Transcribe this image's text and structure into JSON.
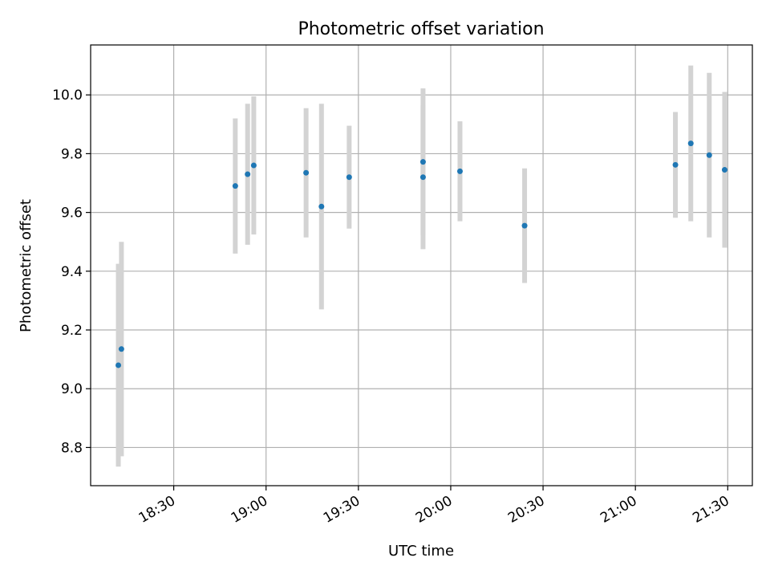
{
  "chart_data": {
    "type": "scatter",
    "title": "Photometric offset variation",
    "xlabel": "UTC time",
    "ylabel": "Photometric offset",
    "x_format": "HH:MM",
    "xlim": [
      "18:03",
      "21:38"
    ],
    "ylim": [
      8.67,
      10.17
    ],
    "x_ticks": [
      "18:30",
      "19:00",
      "19:30",
      "20:00",
      "20:30",
      "21:00",
      "21:30"
    ],
    "y_ticks": [
      "8.8",
      "9.0",
      "9.2",
      "9.4",
      "9.6",
      "9.8",
      "10.0"
    ],
    "grid": true,
    "colors": {
      "points": "#1f77b4",
      "error_bars": "#d3d3d3",
      "grid": "#b0b0b0"
    },
    "points": [
      {
        "x": "18:12",
        "y": 9.08,
        "yerr": 0.345
      },
      {
        "x": "18:13",
        "y": 9.135,
        "yerr": 0.365
      },
      {
        "x": "18:50",
        "y": 9.69,
        "yerr": 0.23
      },
      {
        "x": "18:54",
        "y": 9.73,
        "yerr": 0.24
      },
      {
        "x": "18:56",
        "y": 9.76,
        "yerr": 0.235
      },
      {
        "x": "19:13",
        "y": 9.735,
        "yerr": 0.22
      },
      {
        "x": "19:18",
        "y": 9.62,
        "yerr": 0.35
      },
      {
        "x": "19:27",
        "y": 9.72,
        "yerr": 0.175
      },
      {
        "x": "19:51",
        "y": 9.772,
        "yerr": 0.25
      },
      {
        "x": "19:51",
        "y": 9.72,
        "yerr": 0.245
      },
      {
        "x": "20:03",
        "y": 9.74,
        "yerr": 0.17
      },
      {
        "x": "20:24",
        "y": 9.555,
        "yerr": 0.195
      },
      {
        "x": "21:13",
        "y": 9.762,
        "yerr": 0.18
      },
      {
        "x": "21:18",
        "y": 9.835,
        "yerr": 0.265
      },
      {
        "x": "21:24",
        "y": 9.795,
        "yerr": 0.28
      },
      {
        "x": "21:29",
        "y": 9.745,
        "yerr": 0.265
      }
    ]
  }
}
